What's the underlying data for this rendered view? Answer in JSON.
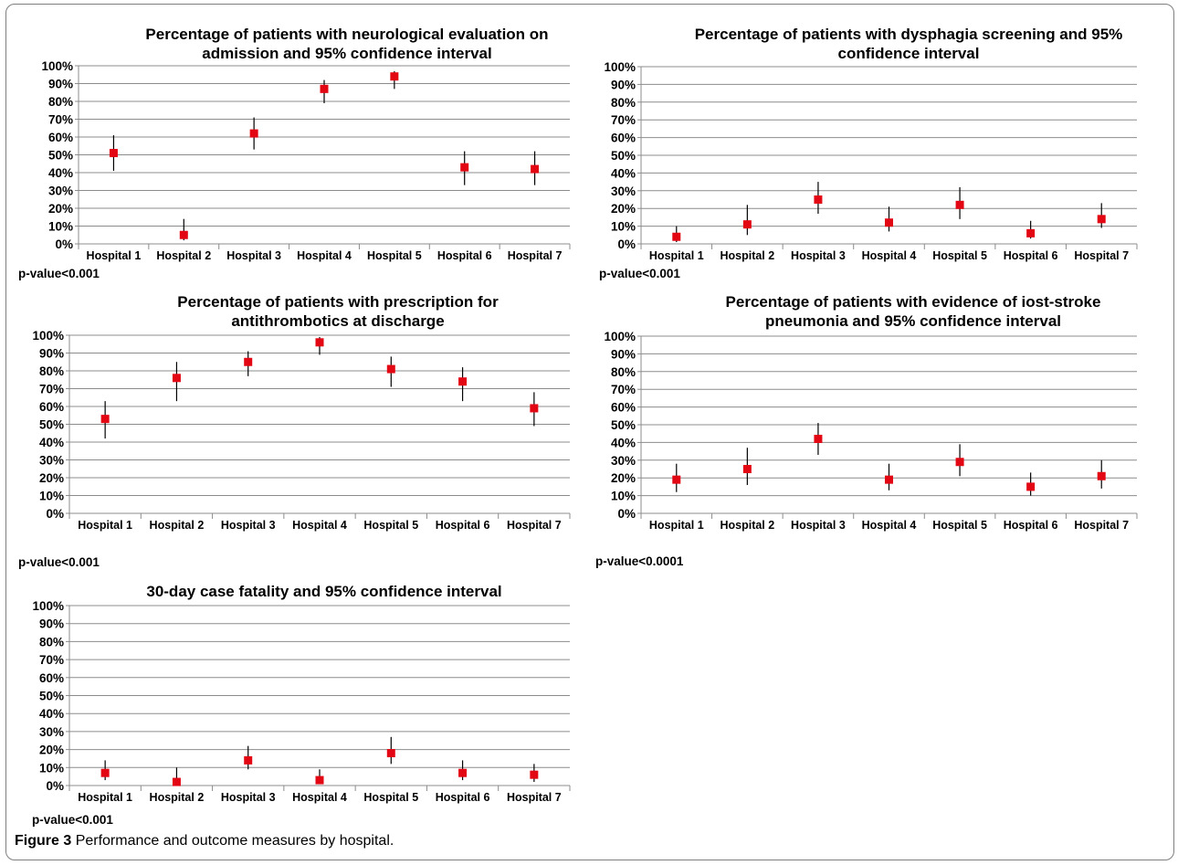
{
  "caption": {
    "label": "Figure 3",
    "text": "Performance and outcome measures by hospital."
  },
  "chart_data": [
    {
      "type": "scatter",
      "title": "Percentage of patients with neurological evaluation on\nadmission and 95% confidence interval",
      "categories": [
        "Hospital 1",
        "Hospital 2",
        "Hospital 3",
        "Hospital 4",
        "Hospital 5",
        "Hospital 6",
        "Hospital 7"
      ],
      "values": [
        51,
        5,
        62,
        87,
        94,
        43,
        42
      ],
      "ci_low": [
        41,
        2,
        53,
        79,
        87,
        33,
        33
      ],
      "ci_high": [
        61,
        14,
        71,
        92,
        97,
        52,
        52
      ],
      "y_ticks": [
        "0%",
        "10%",
        "20%",
        "30%",
        "40%",
        "50%",
        "60%",
        "70%",
        "80%",
        "90%",
        "100%"
      ],
      "ylim": [
        0,
        100
      ],
      "grid": true,
      "marker_color": "#e30613",
      "footnote": "p-value<0.001"
    },
    {
      "type": "scatter",
      "title": "Percentage of patients with dysphagia screening and 95%\nconfidence interval",
      "categories": [
        "Hospital 1",
        "Hospital 2",
        "Hospital 3",
        "Hospital 4",
        "Hospital 5",
        "Hospital 6",
        "Hospital 7"
      ],
      "values": [
        4,
        11,
        25,
        12,
        22,
        6,
        14
      ],
      "ci_low": [
        1,
        5,
        17,
        7,
        14,
        3,
        9
      ],
      "ci_high": [
        10,
        22,
        35,
        21,
        32,
        13,
        23
      ],
      "y_ticks": [
        "0%",
        "10%",
        "20%",
        "30%",
        "40%",
        "50%",
        "60%",
        "70%",
        "80%",
        "90%",
        "100%"
      ],
      "ylim": [
        0,
        100
      ],
      "grid": true,
      "marker_color": "#e30613",
      "footnote": "p-value<0.001"
    },
    {
      "type": "scatter",
      "title": "Percentage of patients with prescription for\nantithrombotics at discharge",
      "categories": [
        "Hospital 1",
        "Hospital 2",
        "Hospital 3",
        "Hospital 4",
        "Hospital 5",
        "Hospital 6",
        "Hospital 7"
      ],
      "values": [
        53,
        76,
        85,
        96,
        81,
        74,
        59
      ],
      "ci_low": [
        42,
        63,
        77,
        89,
        71,
        63,
        49
      ],
      "ci_high": [
        63,
        85,
        91,
        99,
        88,
        82,
        68
      ],
      "y_ticks": [
        "0%",
        "10%",
        "20%",
        "30%",
        "40%",
        "50%",
        "60%",
        "70%",
        "80%",
        "90%",
        "100%"
      ],
      "ylim": [
        0,
        100
      ],
      "grid": true,
      "marker_color": "#e30613",
      "footnote": "p-value<0.001"
    },
    {
      "type": "scatter",
      "title": "Percentage of patients with evidence of iost-stroke\npneumonia  and 95% confidence interval",
      "categories": [
        "Hospital 1",
        "Hospital 2",
        "Hospital 3",
        "Hospital 4",
        "Hospital 5",
        "Hospital 6",
        "Hospital 7"
      ],
      "values": [
        19,
        25,
        42,
        19,
        29,
        15,
        21
      ],
      "ci_low": [
        12,
        16,
        33,
        13,
        21,
        10,
        14
      ],
      "ci_high": [
        28,
        37,
        51,
        28,
        39,
        23,
        30
      ],
      "y_ticks": [
        "0%",
        "10%",
        "20%",
        "30%",
        "40%",
        "50%",
        "60%",
        "70%",
        "80%",
        "90%",
        "100%"
      ],
      "ylim": [
        0,
        100
      ],
      "grid": true,
      "marker_color": "#e30613",
      "footnote": "p-value<0.0001"
    },
    {
      "type": "scatter",
      "title": "30-day case fatality and 95% confidence interval",
      "categories": [
        "Hospital 1",
        "Hospital 2",
        "Hospital 3",
        "Hospital 4",
        "Hospital 5",
        "Hospital 6",
        "Hospital 7"
      ],
      "values": [
        7,
        2,
        14,
        3,
        18,
        7,
        6
      ],
      "ci_low": [
        3,
        0,
        9,
        1,
        12,
        3,
        2
      ],
      "ci_high": [
        14,
        10,
        22,
        9,
        27,
        14,
        12
      ],
      "y_ticks": [
        "0%",
        "10%",
        "20%",
        "30%",
        "40%",
        "50%",
        "60%",
        "70%",
        "80%",
        "90%",
        "100%"
      ],
      "ylim": [
        0,
        100
      ],
      "grid": true,
      "marker_color": "#e30613",
      "footnote": "p-value<0.001"
    }
  ]
}
